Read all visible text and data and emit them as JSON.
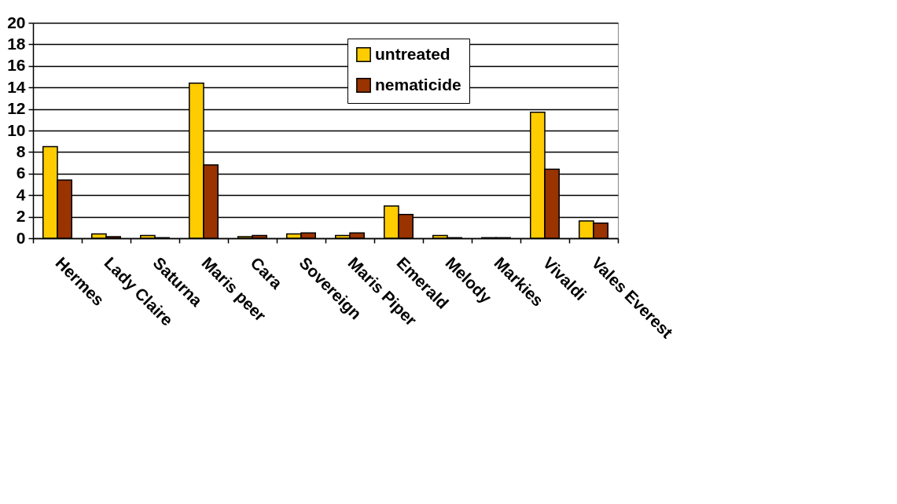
{
  "chart_data": {
    "type": "bar",
    "categories": [
      "Hermes",
      "Lady Claire",
      "Saturna",
      "Maris peer",
      "Cara",
      "Sovereign",
      "Maris Piper",
      "Emerald",
      "Melody",
      "Markies",
      "Vivaldi",
      "Vales Everest"
    ],
    "series": [
      {
        "name": "untreated",
        "color": "#ffcc00",
        "values": [
          8.5,
          0.4,
          0.25,
          14.4,
          0.15,
          0.4,
          0.25,
          3.0,
          0.25,
          0.05,
          11.7,
          1.6
        ]
      },
      {
        "name": "nematicide",
        "color": "#993300",
        "values": [
          5.4,
          0.15,
          0.05,
          6.8,
          0.25,
          0.5,
          0.5,
          2.2,
          0.05,
          0.05,
          6.4,
          1.4
        ]
      }
    ],
    "ylim": [
      0,
      20
    ],
    "yticks": [
      0,
      2,
      4,
      6,
      8,
      10,
      12,
      14,
      16,
      18,
      20
    ],
    "grid": "y",
    "legend": "top"
  }
}
